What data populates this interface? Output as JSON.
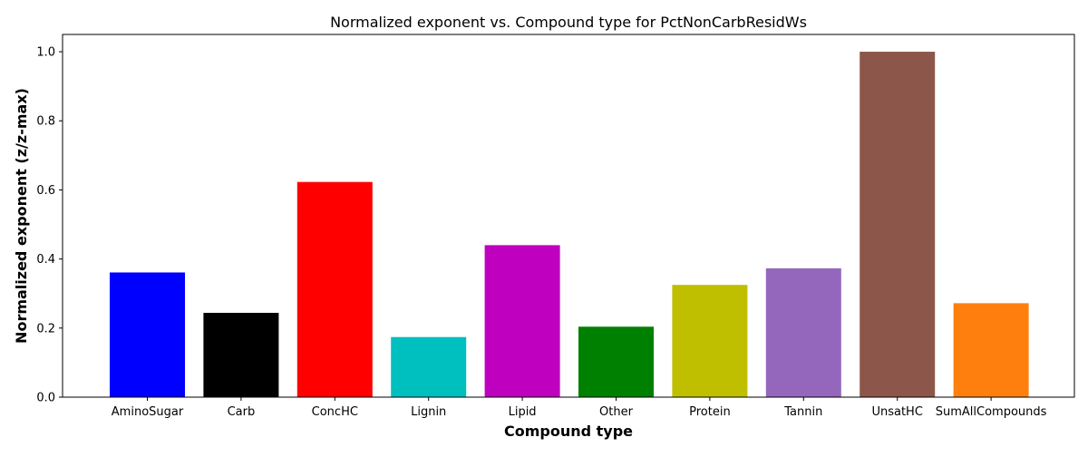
{
  "chart_data": {
    "type": "bar",
    "title": "Normalized exponent vs. Compound type for PctNonCarbResidWs",
    "xlabel": "Compound type",
    "ylabel": "Normalized exponent (z/z-max)",
    "categories": [
      "AminoSugar",
      "Carb",
      "ConcHC",
      "Lignin",
      "Lipid",
      "Other",
      "Protein",
      "Tannin",
      "UnsatHC",
      "SumAllCompounds"
    ],
    "values": [
      0.361,
      0.244,
      0.623,
      0.174,
      0.44,
      0.204,
      0.325,
      0.373,
      1.0,
      0.272
    ],
    "colors": [
      "#0000ff",
      "#000000",
      "#ff0000",
      "#00bfbf",
      "#bf00bf",
      "#008000",
      "#bfbf00",
      "#9467bd",
      "#8c564b",
      "#ff7f0e"
    ],
    "ylim": [
      0,
      1.05
    ],
    "yticks": [
      "0.0",
      "0.2",
      "0.4",
      "0.6",
      "0.8",
      "1.0"
    ],
    "grid": false,
    "legend": "none"
  }
}
